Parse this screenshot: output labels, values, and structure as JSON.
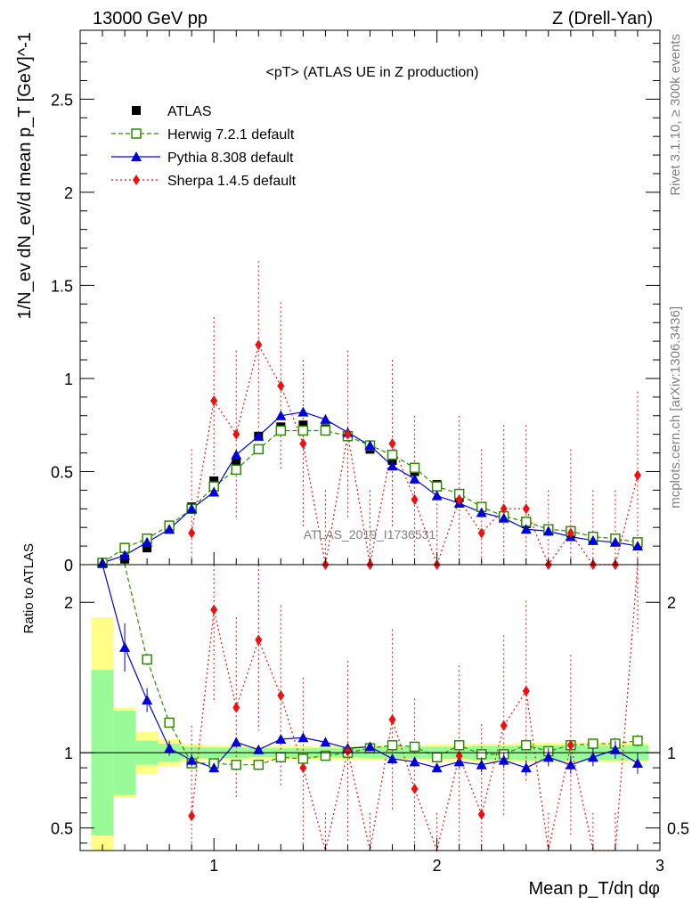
{
  "header": {
    "left": "13000 GeV pp",
    "right": "Z (Drell-Yan)"
  },
  "side_labels": {
    "rivet": "Rivet 3.1.10, ≥ 300k events",
    "mcplots": "mcplots.cern.ch [arXiv:1306.3436]"
  },
  "chart_data": {
    "type": "scatter",
    "title": "<pT> (ATLAS UE in Z production)",
    "watermark": "ATLAS_2019_I1736531",
    "ylabel": "1/N_ev dN_ev/d mean p_T [GeV]^-1",
    "xlabel": "Mean p_T/dη dφ",
    "ratio_ylabel": "Ratio to ATLAS",
    "xlim": [
      0.4,
      3.0
    ],
    "ylim": [
      0,
      2.87
    ],
    "ratio_ylim": [
      0.35,
      2.25
    ],
    "x_ticks": [
      1,
      2,
      3
    ],
    "y_ticks": [
      0,
      0.5,
      1,
      1.5,
      2,
      2.5
    ],
    "ratio_ticks": [
      0.5,
      1,
      2
    ],
    "x": [
      0.5,
      0.6,
      0.7,
      0.8,
      0.9,
      1.0,
      1.1,
      1.2,
      1.3,
      1.4,
      1.5,
      1.6,
      1.7,
      1.8,
      1.9,
      2.0,
      2.1,
      2.2,
      2.3,
      2.4,
      2.5,
      2.6,
      2.7,
      2.8,
      2.9
    ],
    "series": [
      {
        "name": "ATLAS",
        "color": "#000000",
        "marker": "square-filled",
        "values": [
          0.005,
          0.03,
          0.09,
          0.19,
          0.31,
          0.45,
          0.55,
          0.69,
          0.74,
          0.75,
          0.73,
          0.69,
          0.62,
          0.56,
          0.5,
          0.43,
          0.36,
          0.31,
          0.26,
          0.22,
          0.19,
          0.17,
          0.14,
          0.13,
          0.11
        ]
      },
      {
        "name": "Herwig 7.2.1 default",
        "color": "#2e8b00",
        "marker": "square-open",
        "line": "dashed",
        "values": [
          0.01,
          0.09,
          0.14,
          0.21,
          0.3,
          0.42,
          0.51,
          0.62,
          0.72,
          0.72,
          0.72,
          0.69,
          0.64,
          0.59,
          0.52,
          0.42,
          0.38,
          0.31,
          0.26,
          0.23,
          0.19,
          0.18,
          0.15,
          0.14,
          0.12
        ],
        "ratio": [
          2.4,
          2.4,
          1.62,
          1.2,
          0.93,
          0.93,
          0.92,
          0.92,
          0.97,
          0.96,
          0.98,
          1.0,
          1.03,
          1.05,
          1.04,
          0.97,
          1.05,
          0.99,
          0.99,
          1.05,
          1.01,
          1.05,
          1.06,
          1.06,
          1.08
        ],
        "ratio_err": [
          0,
          0,
          0.04,
          0.03,
          0.02,
          0.02,
          0.02,
          0.01,
          0.01,
          0.01,
          0.01,
          0.01,
          0.01,
          0.01,
          0.01,
          0.02,
          0.02,
          0.02,
          0.02,
          0.02,
          0.03,
          0.03,
          0.03,
          0.04,
          0.04
        ]
      },
      {
        "name": "Pythia 8.308 default",
        "color": "#0000dd",
        "marker": "triangle-filled",
        "line": "solid",
        "values": [
          0.01,
          0.05,
          0.12,
          0.19,
          0.3,
          0.39,
          0.59,
          0.69,
          0.8,
          0.82,
          0.78,
          0.71,
          0.64,
          0.53,
          0.46,
          0.37,
          0.33,
          0.28,
          0.25,
          0.19,
          0.18,
          0.15,
          0.13,
          0.12,
          0.1
        ],
        "ratio": [
          2.4,
          1.7,
          1.35,
          1.03,
          0.95,
          0.9,
          1.07,
          1.02,
          1.09,
          1.1,
          1.07,
          1.03,
          1.04,
          0.96,
          0.94,
          0.9,
          0.94,
          0.92,
          0.95,
          0.9,
          0.97,
          0.92,
          0.97,
          1.02,
          0.93
        ],
        "ratio_err": [
          0,
          0.16,
          0.08,
          0.05,
          0.04,
          0.03,
          0.03,
          0.02,
          0.02,
          0.02,
          0.02,
          0.02,
          0.03,
          0.03,
          0.03,
          0.03,
          0.04,
          0.05,
          0.05,
          0.05,
          0.06,
          0.06,
          0.06,
          0.06,
          0.07
        ]
      },
      {
        "name": "Sherpa 1.4.5 default",
        "color": "#ee1111",
        "marker": "diamond-filled",
        "line": "dotted",
        "values": [
          null,
          null,
          null,
          null,
          0.17,
          0.88,
          0.7,
          1.18,
          0.96,
          0.65,
          0.0,
          0.7,
          0.0,
          0.65,
          0.35,
          0.0,
          0.35,
          0.17,
          0.3,
          0.3,
          0.0,
          0.17,
          0.0,
          0.0,
          0.48
        ],
        "ratio": [
          null,
          null,
          null,
          null,
          0.58,
          1.95,
          1.3,
          1.75,
          1.38,
          0.9,
          0.0,
          1.01,
          0.0,
          1.22,
          0.76,
          0.0,
          0.98,
          0.59,
          1.18,
          1.41,
          0.0,
          1.05,
          0.0,
          0.0,
          2.4
        ]
      }
    ],
    "legend": [
      "ATLAS",
      "Herwig 7.2.1 default",
      "Pythia 8.308 default",
      "Sherpa 1.4.5 default"
    ],
    "band_colors": {
      "inner": "#98fb98",
      "outer": "#ffff88"
    }
  }
}
